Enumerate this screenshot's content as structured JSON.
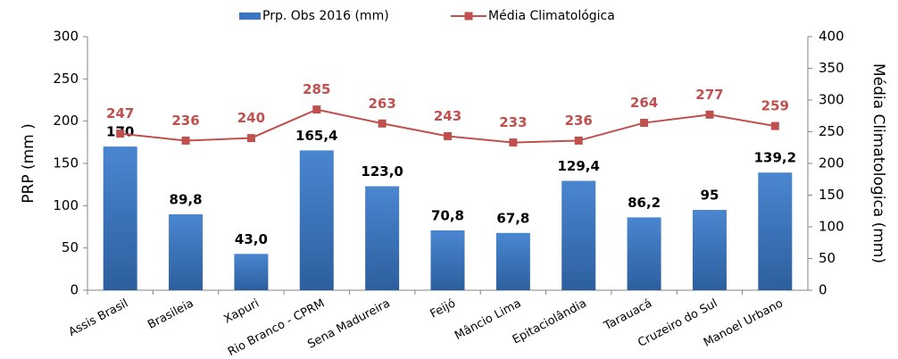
{
  "chart_data": {
    "type": "bar-line",
    "categories": [
      "Assis Brasil",
      "Brasileia",
      "Xapuri",
      "Rio Branco - CPRM",
      "Sena Madureira",
      "Feijó",
      "Mâncio Lima",
      "Epitaciolândia",
      "Tarauacá",
      "Cruzeiro do Sul",
      "Manoel Urbano"
    ],
    "series": [
      {
        "name": "Prp. Obs 2016 (mm)",
        "color": "#3a75c4",
        "values": [
          170,
          89.8,
          43.0,
          165.4,
          123.0,
          70.8,
          67.8,
          129.4,
          86.2,
          95,
          139.2
        ],
        "value_labels": [
          "170",
          "89,8",
          "43,0",
          "165,4",
          "123,0",
          "70,8",
          "67,8",
          "129,4",
          "86,2",
          "95",
          "139,2"
        ]
      },
      {
        "name": "Média Climatológica",
        "color": "#c0504d",
        "axis": "y2",
        "values": [
          247,
          236,
          240,
          285,
          263,
          243,
          233,
          236,
          264,
          277,
          259
        ]
      }
    ],
    "y_label": "PRP (mm )",
    "y2_label": "Média Climatologica (mm)",
    "ylim": [
      0,
      300
    ],
    "yticks": [
      0,
      50,
      100,
      150,
      200,
      250,
      300
    ],
    "y2lim": [
      0,
      400
    ],
    "y2ticks": [
      0,
      50,
      100,
      150,
      200,
      250,
      300,
      350,
      400
    ]
  }
}
